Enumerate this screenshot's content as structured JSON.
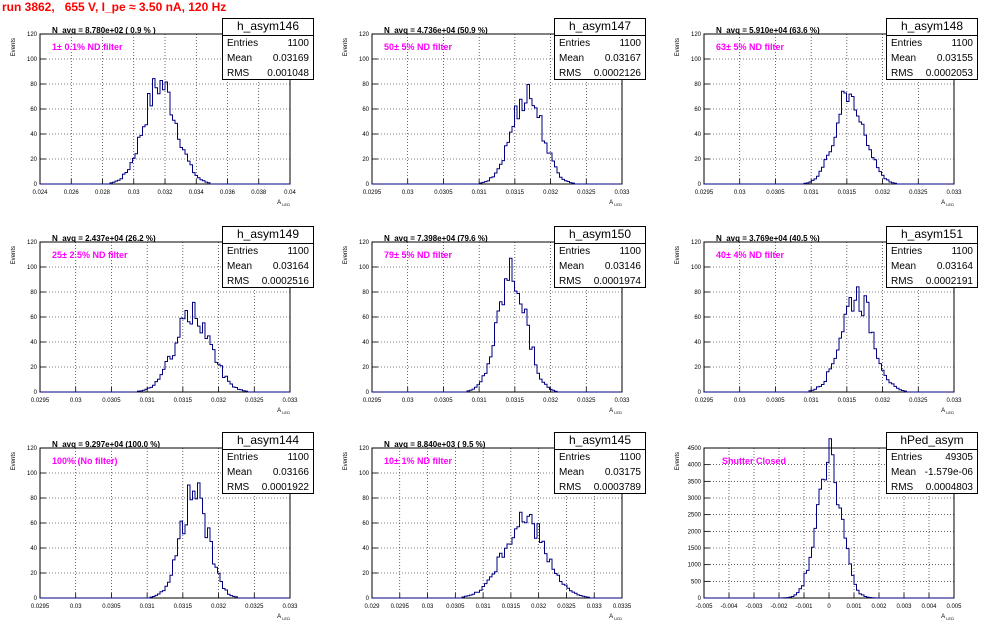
{
  "header": {
    "title": "run 3862,   655 V, I_pe ≈ 3.50 nA, 120 Hz"
  },
  "chart_data": [
    {
      "type": "histogram",
      "name": "h_asym146",
      "navg": "N_avg = 8.780e+02 ( 0.9 % )",
      "filter_label": "1± 0.1% ND filter",
      "stats": {
        "entries": "1100",
        "mean": "0.03169",
        "rms": "0.001048"
      },
      "ylabel": "Events",
      "xlabel": "A_{LED}",
      "xlim": [
        0.024,
        0.04
      ],
      "ylim": [
        0,
        120
      ],
      "xticks": [
        0.024,
        0.026,
        0.028,
        0.03,
        0.032,
        0.034,
        0.036,
        0.038,
        0.04
      ],
      "xtick_labels": [
        "0.024",
        "0.026",
        "0.028",
        "0.03",
        "0.032",
        "0.034",
        "0.036",
        "0.038",
        "0.04"
      ],
      "yticks": [
        0,
        20,
        40,
        60,
        80,
        100,
        120
      ],
      "mean": 0.03169,
      "rms": 0.001048,
      "peak": 80
    },
    {
      "type": "histogram",
      "name": "h_asym147",
      "navg": "N_avg = 4.736e+04 (50.9 %)",
      "filter_label": "50± 5% ND filter",
      "stats": {
        "entries": "1100",
        "mean": "0.03167",
        "rms": "0.0002126"
      },
      "ylabel": "Events",
      "xlabel": "A_{LED}",
      "xlim": [
        0.0295,
        0.033
      ],
      "ylim": [
        0,
        120
      ],
      "xticks": [
        0.0295,
        0.03,
        0.0305,
        0.031,
        0.0315,
        0.032,
        0.0325,
        0.033
      ],
      "xtick_labels": [
        "0.0295",
        "0.03",
        "0.0305",
        "0.031",
        "0.0315",
        "0.032",
        "0.0325",
        "0.033"
      ],
      "yticks": [
        0,
        20,
        40,
        60,
        80,
        100,
        120
      ],
      "mean": 0.03167,
      "rms": 0.0002126,
      "peak": 73
    },
    {
      "type": "histogram",
      "name": "h_asym148",
      "navg": "N_avg = 5.910e+04 (63.6 %)",
      "filter_label": "63± 5% ND filter",
      "stats": {
        "entries": "1100",
        "mean": "0.03155",
        "rms": "0.0002053"
      },
      "ylabel": "Events",
      "xlabel": "A_{LED}",
      "xlim": [
        0.0295,
        0.033
      ],
      "ylim": [
        0,
        120
      ],
      "xticks": [
        0.0295,
        0.03,
        0.0305,
        0.031,
        0.0315,
        0.032,
        0.0325,
        0.033
      ],
      "xtick_labels": [
        "0.0295",
        "0.03",
        "0.0305",
        "0.031",
        "0.0315",
        "0.032",
        "0.0325",
        "0.033"
      ],
      "yticks": [
        0,
        20,
        40,
        60,
        80,
        100,
        120
      ],
      "mean": 0.03155,
      "rms": 0.0002053,
      "peak": 73
    },
    {
      "type": "histogram",
      "name": "h_asym149",
      "navg": "N_avg = 2.437e+04 (26.2 %)",
      "filter_label": "25± 2.5% ND filter",
      "stats": {
        "entries": "1100",
        "mean": "0.03164",
        "rms": "0.0002516"
      },
      "ylabel": "Events",
      "xlabel": "A_{LED}",
      "xlim": [
        0.0295,
        0.033
      ],
      "ylim": [
        0,
        120
      ],
      "xticks": [
        0.0295,
        0.03,
        0.0305,
        0.031,
        0.0315,
        0.032,
        0.0325,
        0.033
      ],
      "xtick_labels": [
        "0.0295",
        "0.03",
        "0.0305",
        "0.031",
        "0.0315",
        "0.032",
        "0.0325",
        "0.033"
      ],
      "yticks": [
        0,
        20,
        40,
        60,
        80,
        100,
        120
      ],
      "mean": 0.03164,
      "rms": 0.0002516,
      "peak": 62
    },
    {
      "type": "histogram",
      "name": "h_asym150",
      "navg": "N_avg = 7.398e+04 (79.6 %)",
      "filter_label": "79± 5% ND filter",
      "stats": {
        "entries": "1100",
        "mean": "0.03146",
        "rms": "0.0001974"
      },
      "ylabel": "Events",
      "xlabel": "A_{LED}",
      "xlim": [
        0.0295,
        0.033
      ],
      "ylim": [
        0,
        120
      ],
      "xticks": [
        0.0295,
        0.03,
        0.0305,
        0.031,
        0.0315,
        0.032,
        0.0325,
        0.033
      ],
      "xtick_labels": [
        "0.0295",
        "0.03",
        "0.0305",
        "0.031",
        "0.0315",
        "0.032",
        "0.0325",
        "0.033"
      ],
      "yticks": [
        0,
        20,
        40,
        60,
        80,
        100,
        120
      ],
      "mean": 0.03146,
      "rms": 0.0001974,
      "peak": 96
    },
    {
      "type": "histogram",
      "name": "h_asym151",
      "navg": "N_avg = 3.769e+04 (40.5 %)",
      "filter_label": "40± 4% ND filter",
      "stats": {
        "entries": "1100",
        "mean": "0.03164",
        "rms": "0.0002191"
      },
      "ylabel": "Events",
      "xlabel": "A_{LED}",
      "xlim": [
        0.0295,
        0.033
      ],
      "ylim": [
        0,
        120
      ],
      "xticks": [
        0.0295,
        0.03,
        0.0305,
        0.031,
        0.0315,
        0.032,
        0.0325,
        0.033
      ],
      "xtick_labels": [
        "0.0295",
        "0.03",
        "0.0305",
        "0.031",
        "0.0315",
        "0.032",
        "0.0325",
        "0.033"
      ],
      "yticks": [
        0,
        20,
        40,
        60,
        80,
        100,
        120
      ],
      "mean": 0.03164,
      "rms": 0.0002191,
      "peak": 79
    },
    {
      "type": "histogram",
      "name": "h_asym144",
      "navg": "N_avg = 9.297e+04 (100.0 %)",
      "filter_label": "100% (No filter)",
      "stats": {
        "entries": "1100",
        "mean": "0.03166",
        "rms": "0.0001922"
      },
      "ylabel": "Events",
      "xlabel": "A_{LED}",
      "xlim": [
        0.0295,
        0.033
      ],
      "ylim": [
        0,
        120
      ],
      "xticks": [
        0.0295,
        0.03,
        0.0305,
        0.031,
        0.0315,
        0.032,
        0.0325,
        0.033
      ],
      "xtick_labels": [
        "0.0295",
        "0.03",
        "0.0305",
        "0.031",
        "0.0315",
        "0.032",
        "0.0325",
        "0.033"
      ],
      "yticks": [
        0,
        20,
        40,
        60,
        80,
        100,
        120
      ],
      "mean": 0.03166,
      "rms": 0.0001922,
      "peak": 84
    },
    {
      "type": "histogram",
      "name": "h_asym145",
      "navg": "N_avg = 8.840e+03 ( 9.5 %)",
      "filter_label": "10± 1% ND filter",
      "stats": {
        "entries": "1100",
        "mean": "0.03175",
        "rms": "0.0003789"
      },
      "ylabel": "Events",
      "xlabel": "A_{LED}",
      "xlim": [
        0.029,
        0.0335
      ],
      "ylim": [
        0,
        120
      ],
      "xticks": [
        0.029,
        0.0295,
        0.03,
        0.0305,
        0.031,
        0.0315,
        0.032,
        0.0325,
        0.033,
        0.0335
      ],
      "xtick_labels": [
        "0.029",
        "0.0295",
        "0.03",
        "0.0305",
        "0.031",
        "0.0315",
        "0.032",
        "0.0325",
        "0.033",
        "0.0335"
      ],
      "yticks": [
        0,
        20,
        40,
        60,
        80,
        100,
        120
      ],
      "mean": 0.03175,
      "rms": 0.0003789,
      "peak": 62
    },
    {
      "type": "histogram",
      "name": "hPed_asym",
      "navg": "",
      "filter_label": "Shutter Closed",
      "stats": {
        "entries": "49305",
        "mean": "-1.579e-06",
        "rms": "0.0004803"
      },
      "ylabel": "Events",
      "xlabel": "A_{LED}",
      "xlim": [
        -0.005,
        0.005
      ],
      "ylim": [
        0,
        4500
      ],
      "xticks": [
        -0.005,
        -0.004,
        -0.003,
        -0.002,
        -0.001,
        0,
        0.001,
        0.002,
        0.003,
        0.004,
        0.005
      ],
      "xtick_labels": [
        "-0.005",
        "-0.004",
        "-0.003",
        "-0.002",
        "-0.001",
        "0",
        "0.001",
        "0.002",
        "0.003",
        "0.004",
        "0.005"
      ],
      "yticks": [
        0,
        500,
        1000,
        1500,
        2000,
        2500,
        3000,
        3500,
        4000,
        4500
      ],
      "mean": -1.579e-06,
      "rms": 0.0004803,
      "peak": 4450
    }
  ],
  "stat_labels": {
    "entries": "Entries",
    "mean": "Mean",
    "rms": "RMS"
  },
  "colors": {
    "histogram": "#000080",
    "title": "#ff0000",
    "filter": "#ff00ff",
    "grid": "#000000"
  }
}
